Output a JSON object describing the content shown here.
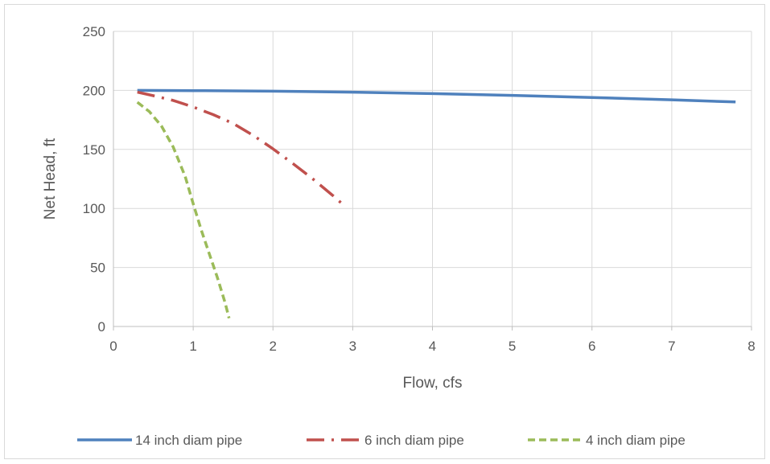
{
  "chart_data": {
    "type": "line",
    "xlabel": "Flow, cfs",
    "ylabel": "Net Head, ft",
    "xlim": [
      0,
      8
    ],
    "ylim": [
      0,
      250
    ],
    "xticks": [
      0,
      1,
      2,
      3,
      4,
      5,
      6,
      7,
      8
    ],
    "yticks": [
      0,
      50,
      100,
      150,
      200,
      250
    ],
    "grid": true,
    "legend_position": "bottom",
    "series": [
      {
        "name": "14 inch diam pipe",
        "color": "#4f81bd",
        "dash": "solid",
        "x": [
          0.3,
          1,
          2,
          3,
          4,
          5,
          6,
          7,
          7.8
        ],
        "y": [
          200,
          199.8,
          199.3,
          198.5,
          197.3,
          195.8,
          194,
          192,
          190.2
        ]
      },
      {
        "name": "6 inch diam pipe",
        "color": "#c0504d",
        "dash": "dash-dot",
        "x": [
          0.3,
          0.5,
          0.75,
          1,
          1.25,
          1.5,
          1.75,
          2,
          2.25,
          2.5,
          2.75,
          2.9
        ],
        "y": [
          198.5,
          195.5,
          191.5,
          186,
          179.5,
          172,
          162,
          150.5,
          138,
          125,
          111,
          102
        ]
      },
      {
        "name": "4 inch diam pipe",
        "color": "#9bbb59",
        "dash": "dashed",
        "x": [
          0.3,
          0.45,
          0.6,
          0.75,
          0.9,
          1,
          1.1,
          1.2,
          1.3,
          1.4,
          1.45
        ],
        "y": [
          190,
          182,
          170,
          152,
          127,
          104,
          82,
          62,
          42,
          20,
          7
        ]
      }
    ]
  }
}
